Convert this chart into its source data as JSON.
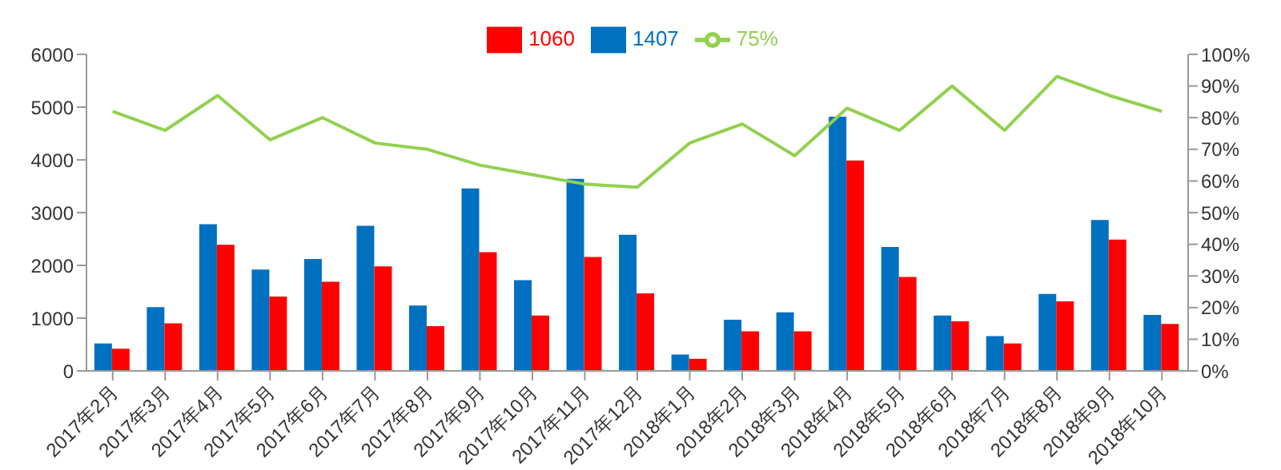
{
  "chart_data": {
    "type": "bar",
    "categories": [
      "2017年2月",
      "2017年3月",
      "2017年4月",
      "2017年5月",
      "2017年6月",
      "2017年7月",
      "2017年8月",
      "2017年9月",
      "2017年10月",
      "2017年11月",
      "2017年12月",
      "2018年1月",
      "2018年2月",
      "2018年3月",
      "2018年4月",
      "2018年5月",
      "2018年6月",
      "2018年7月",
      "2018年8月",
      "2018年9月",
      "2018年10月"
    ],
    "series": [
      {
        "name": "1407",
        "color": "#0070c0",
        "values": [
          520,
          1210,
          2780,
          1920,
          2120,
          2750,
          1240,
          3460,
          1720,
          3640,
          2580,
          310,
          970,
          1110,
          4820,
          2350,
          1050,
          660,
          1460,
          2860,
          1060
        ]
      },
      {
        "name": "1060",
        "color": "#ff0000",
        "values": [
          420,
          900,
          2390,
          1410,
          1690,
          1980,
          850,
          2250,
          1050,
          2160,
          1470,
          230,
          750,
          750,
          3990,
          1780,
          940,
          520,
          1320,
          2490,
          890
        ]
      },
      {
        "name": "75%",
        "type": "line",
        "axis": "y2",
        "color": "#92d050",
        "values": [
          82,
          76,
          87,
          73,
          80,
          72,
          70,
          65,
          62,
          59,
          58,
          72,
          78,
          68,
          83,
          76,
          90,
          76,
          93,
          87,
          82
        ]
      }
    ],
    "ylim": [
      0,
      6000
    ],
    "yticks": [
      0,
      1000,
      2000,
      3000,
      4000,
      5000,
      6000
    ],
    "y2lim": [
      0,
      100
    ],
    "y2ticks": [
      {
        "value": 0,
        "label": "0%"
      },
      {
        "value": 10,
        "label": "10%"
      },
      {
        "value": 20,
        "label": "20%"
      },
      {
        "value": 30,
        "label": "30%"
      },
      {
        "value": 40,
        "label": "40%"
      },
      {
        "value": 50,
        "label": "50%"
      },
      {
        "value": 60,
        "label": "60%"
      },
      {
        "value": 70,
        "label": "70%"
      },
      {
        "value": 80,
        "label": "80%"
      },
      {
        "value": 90,
        "label": "90%"
      },
      {
        "value": 100,
        "label": "100%"
      }
    ],
    "legend": "top",
    "grid": false,
    "marker": "none"
  }
}
